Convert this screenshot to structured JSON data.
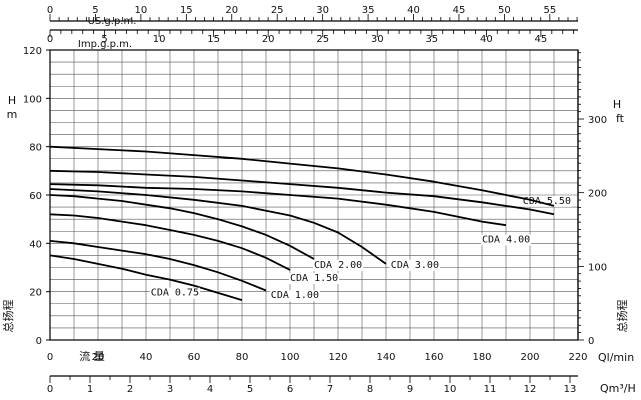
{
  "chart_data": {
    "type": "line",
    "axes": {
      "main_x": {
        "unit_label": "Ql/min",
        "inner_label": "流 量",
        "range": [
          0,
          220
        ],
        "ticks": [
          0,
          20,
          40,
          60,
          80,
          100,
          120,
          140,
          160,
          180,
          200,
          220
        ],
        "minor_step": 10
      },
      "m3h_x": {
        "unit_label": "Qm³/H",
        "range": [
          0,
          13.2
        ],
        "ticks": [
          0,
          1,
          2,
          3,
          4,
          5,
          6,
          7,
          8,
          9,
          10,
          11,
          12,
          13
        ],
        "minor_step": 0.5
      },
      "usgpm_x": {
        "unit_label": "US.g.p.m.",
        "range": [
          0,
          58.1
        ],
        "ticks": [
          0,
          5,
          10,
          15,
          20,
          25,
          30,
          35,
          40,
          45,
          50,
          55
        ],
        "minor_step": 1
      },
      "impgpm_x": {
        "unit_label": "Imp.g.p.m.",
        "range": [
          0,
          48.4
        ],
        "ticks": [
          0,
          5,
          10,
          15,
          20,
          25,
          30,
          35,
          40,
          45
        ],
        "minor_step": 1
      },
      "left_y": {
        "unit_label_top": "H",
        "unit_label_bottom": "m",
        "side_label": "总扬程",
        "range": [
          0,
          120
        ],
        "ticks": [
          0,
          20,
          40,
          60,
          80,
          100,
          120
        ],
        "minor_step": 5
      },
      "right_y": {
        "unit_label_top": "H",
        "unit_label_bottom": "ft",
        "side_label": "总扬程",
        "range": [
          0,
          393.7
        ],
        "ticks": [
          0,
          100,
          200,
          300
        ],
        "minor_step": 10
      }
    },
    "grid": true,
    "series": [
      {
        "name": "CDA 0.75",
        "label_at": [
          42,
          20
        ],
        "points": [
          [
            0,
            35
          ],
          [
            10,
            33.5
          ],
          [
            20,
            31.5
          ],
          [
            30,
            29.5
          ],
          [
            40,
            27
          ],
          [
            50,
            25
          ],
          [
            60,
            22.5
          ],
          [
            70,
            19.5
          ],
          [
            80,
            16.5
          ]
        ]
      },
      {
        "name": "CDA 1.00",
        "label_at": [
          92,
          19
        ],
        "points": [
          [
            0,
            41
          ],
          [
            10,
            40
          ],
          [
            20,
            38.5
          ],
          [
            30,
            37
          ],
          [
            40,
            35.5
          ],
          [
            50,
            33.5
          ],
          [
            60,
            31
          ],
          [
            70,
            28
          ],
          [
            80,
            24.5
          ],
          [
            90,
            20.5
          ]
        ]
      },
      {
        "name": "CDA 1.50",
        "label_at": [
          100,
          26
        ],
        "points": [
          [
            0,
            52
          ],
          [
            10,
            51.5
          ],
          [
            20,
            50.5
          ],
          [
            30,
            49
          ],
          [
            40,
            47.5
          ],
          [
            50,
            45.5
          ],
          [
            60,
            43.5
          ],
          [
            70,
            41
          ],
          [
            80,
            38
          ],
          [
            90,
            34
          ],
          [
            100,
            29
          ]
        ]
      },
      {
        "name": "CDA 2.00",
        "label_at": [
          110,
          31.5
        ],
        "points": [
          [
            0,
            60
          ],
          [
            10,
            59.5
          ],
          [
            20,
            58.5
          ],
          [
            30,
            57.5
          ],
          [
            40,
            56
          ],
          [
            50,
            54.5
          ],
          [
            60,
            52.5
          ],
          [
            70,
            50
          ],
          [
            80,
            47
          ],
          [
            90,
            43.5
          ],
          [
            100,
            39
          ],
          [
            110,
            33.5
          ]
        ]
      },
      {
        "name": "CDA 3.00",
        "label_at": [
          142,
          31.5
        ],
        "points": [
          [
            0,
            62.5
          ],
          [
            20,
            61.5
          ],
          [
            40,
            60
          ],
          [
            60,
            58
          ],
          [
            80,
            55.5
          ],
          [
            100,
            51.5
          ],
          [
            110,
            48.5
          ],
          [
            120,
            44.5
          ],
          [
            130,
            38.5
          ],
          [
            140,
            31.5
          ]
        ]
      },
      {
        "name": "CDA 4.00",
        "label_at": [
          180,
          42
        ],
        "points": [
          [
            0,
            64.5
          ],
          [
            20,
            64
          ],
          [
            40,
            63
          ],
          [
            60,
            62.5
          ],
          [
            80,
            61.5
          ],
          [
            100,
            60
          ],
          [
            120,
            58.5
          ],
          [
            140,
            56
          ],
          [
            160,
            53
          ],
          [
            180,
            49
          ],
          [
            190,
            47.5
          ]
        ]
      },
      {
        "name": "CDA 5.50",
        "label_at": [
          197,
          58
        ],
        "points": [
          [
            0,
            70
          ],
          [
            20,
            69.5
          ],
          [
            40,
            68.5
          ],
          [
            60,
            67.5
          ],
          [
            80,
            66
          ],
          [
            100,
            64.5
          ],
          [
            120,
            63
          ],
          [
            140,
            61
          ],
          [
            160,
            59.5
          ],
          [
            180,
            57
          ],
          [
            200,
            54
          ],
          [
            210,
            52
          ]
        ]
      },
      {
        "name": "",
        "label_at": null,
        "points": [
          [
            0,
            80
          ],
          [
            20,
            79
          ],
          [
            40,
            78
          ],
          [
            60,
            76.5
          ],
          [
            80,
            75
          ],
          [
            100,
            73
          ],
          [
            120,
            71
          ],
          [
            140,
            68.5
          ],
          [
            160,
            65.5
          ],
          [
            180,
            62
          ],
          [
            200,
            58
          ],
          [
            210,
            55.5
          ]
        ]
      }
    ]
  }
}
